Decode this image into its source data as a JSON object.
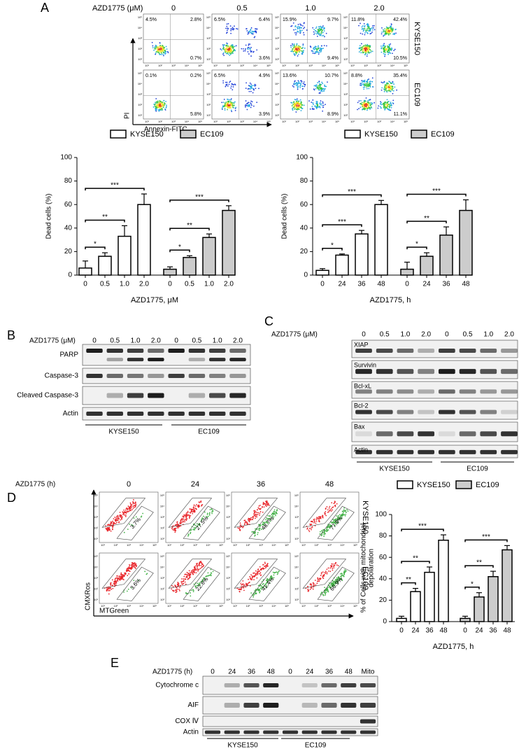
{
  "panel_labels": [
    "A",
    "B",
    "C",
    "D",
    "E"
  ],
  "flow_a": {
    "treatment_label": "AZD1775 (μM)",
    "columns": [
      "0",
      "0.5",
      "1.0",
      "2.0"
    ],
    "rows": [
      {
        "name": "KYSE150",
        "quadrants": [
          [
            "4.5%",
            "2.8%",
            "0.7%"
          ],
          [
            "6.5%",
            "6.4%",
            "3.6%"
          ],
          [
            "15.9%",
            "9.7%",
            "9.4%"
          ],
          [
            "11.8%",
            "42.4%",
            "10.5%"
          ]
        ]
      },
      {
        "name": "EC109",
        "quadrants": [
          [
            "0.1%",
            "0.2%",
            "5.8%"
          ],
          [
            "6.5%",
            "4.9%",
            "3.9%"
          ],
          [
            "13.6%",
            "10.7%",
            "8.9%"
          ],
          [
            "8.8%",
            "35.4%",
            "11.1%"
          ]
        ]
      }
    ],
    "y_label": "PI",
    "x_label": "Annexin-FITC",
    "axis_ticks": [
      "10¹",
      "10²",
      "10³",
      "10⁴",
      "10⁵"
    ]
  },
  "chart_data": [
    {
      "type": "bar",
      "x_label": "AZD1775, μM",
      "y_label": "Dead cells (%)",
      "categories": [
        "0",
        "0.5",
        "1.0",
        "2.0",
        "0",
        "0.5",
        "1.0",
        "2.0"
      ],
      "series": [
        {
          "name": "KYSE150",
          "color": "#ffffff",
          "values": [
            6,
            16,
            33,
            60,
            null,
            null,
            null,
            null
          ],
          "errors": [
            6,
            3,
            9,
            9,
            null,
            null,
            null,
            null
          ]
        },
        {
          "name": "EC109",
          "color": "#cccccc",
          "values": [
            null,
            null,
            null,
            null,
            5,
            15,
            32,
            55
          ],
          "errors": [
            null,
            null,
            null,
            null,
            2,
            1.5,
            3,
            4
          ]
        }
      ],
      "annotations": [
        "*",
        "**",
        "***",
        "*",
        "**",
        "***"
      ],
      "ylim": [
        0,
        100
      ],
      "yticks": [
        0,
        20,
        40,
        60,
        80,
        100
      ]
    },
    {
      "type": "bar",
      "x_label": "AZD1775, h",
      "y_label": "Dead cells (%)",
      "categories": [
        "0",
        "24",
        "36",
        "48",
        "0",
        "24",
        "36",
        "48"
      ],
      "series": [
        {
          "name": "KYSE150",
          "color": "#ffffff",
          "values": [
            4,
            17,
            35,
            60,
            null,
            null,
            null,
            null
          ],
          "errors": [
            1.5,
            1,
            3,
            3.5,
            null,
            null,
            null,
            null
          ]
        },
        {
          "name": "EC109",
          "color": "#cccccc",
          "values": [
            null,
            null,
            null,
            null,
            5,
            16,
            34,
            55
          ],
          "errors": [
            null,
            null,
            null,
            null,
            6,
            3,
            7,
            9
          ]
        }
      ],
      "annotations": [
        "*",
        "***",
        "***",
        "*",
        "**",
        "***"
      ],
      "ylim": [
        0,
        100
      ],
      "yticks": [
        0,
        20,
        40,
        60,
        80,
        100
      ]
    },
    {
      "type": "bar",
      "x_label": "AZD1775, h",
      "y_label": [
        "% of Cells with mitochondrial",
        "depolaration"
      ],
      "categories": [
        "0",
        "24",
        "36",
        "48",
        "0",
        "24",
        "36",
        "48"
      ],
      "series": [
        {
          "name": "KYSE150",
          "color": "#ffffff",
          "values": [
            3,
            28,
            46,
            76,
            null,
            null,
            null,
            null
          ],
          "errors": [
            2,
            3,
            5,
            5,
            null,
            null,
            null,
            null
          ]
        },
        {
          "name": "EC109",
          "color": "#cccccc",
          "values": [
            null,
            null,
            null,
            null,
            3,
            23,
            42,
            67
          ],
          "errors": [
            null,
            null,
            null,
            null,
            2,
            4,
            5,
            4
          ]
        }
      ],
      "annotations": [
        "**",
        "**",
        "***",
        "*",
        "**",
        "***"
      ],
      "ylim": [
        0,
        100
      ],
      "yticks": [
        0,
        20,
        40,
        60,
        80,
        100
      ]
    }
  ],
  "blot_b": {
    "treatment_label": "AZD1775 (μM)",
    "lanes": [
      "0",
      "0.5",
      "1.0",
      "2.0",
      "0",
      "0.5",
      "1.0",
      "2.0"
    ],
    "proteins": [
      "PARP",
      "Caspase-3",
      "Cleaved Caspase-3",
      "Actin"
    ],
    "groups": [
      "KYSE150",
      "EC109"
    ]
  },
  "blot_c": {
    "treatment_label": "AZD1775 (μM)",
    "lanes": [
      "0",
      "0.5",
      "1.0",
      "2.0",
      "0",
      "0.5",
      "1.0",
      "2.0"
    ],
    "proteins": [
      "XIAP",
      "Survivin",
      "Bcl-xL",
      "Bcl-2",
      "Bax",
      "Actin"
    ],
    "groups": [
      "KYSE150",
      "EC109"
    ]
  },
  "flow_d": {
    "treatment_label": "AZD1775 (h)",
    "columns": [
      "0",
      "24",
      "36",
      "48"
    ],
    "rows": [
      {
        "name": "KYSE150",
        "percentages": [
          "3.7%",
          "27.5%",
          "48.7%",
          "77.8%"
        ]
      },
      {
        "name": "EC109",
        "percentages": [
          "3.6%",
          "22.6%",
          "41.4%",
          "66.9%"
        ]
      }
    ],
    "y_label": "CMXRos",
    "x_label": "MTGreen",
    "axis_ticks": [
      "10¹",
      "10²",
      "10³",
      "10⁴",
      "10⁵"
    ]
  },
  "blot_e": {
    "treatment_label": "AZD1775 (h)",
    "lanes": [
      "0",
      "24",
      "36",
      "48",
      "0",
      "24",
      "36",
      "48",
      "Mito"
    ],
    "proteins": [
      "Cytochrome c",
      "AIF",
      "COX Ⅳ",
      "Actin"
    ],
    "groups": [
      "KYSE150",
      "EC109"
    ]
  }
}
